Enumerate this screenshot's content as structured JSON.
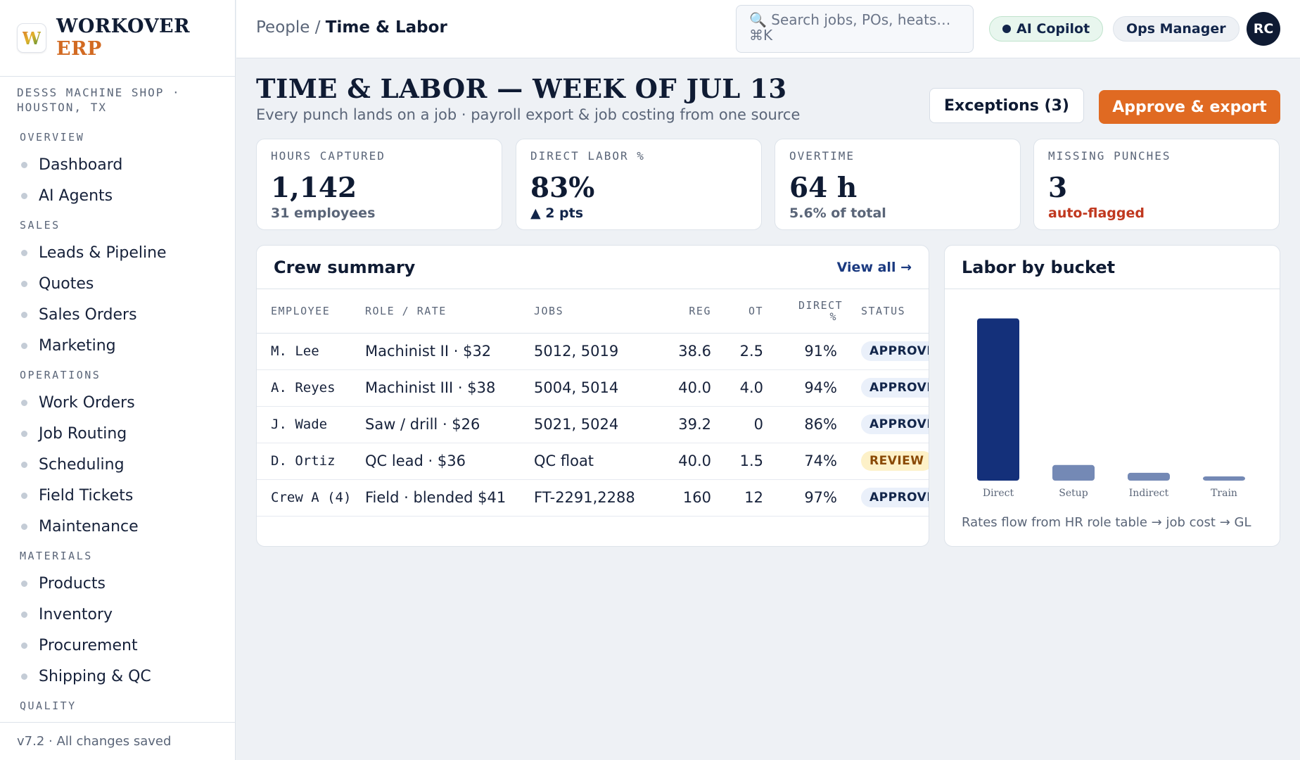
{
  "brand": {
    "logo_letter": "W",
    "name_line1": "WORKOVER",
    "name_line2": "ERP",
    "accent": "#d26a22"
  },
  "shop": "DESSS MACHINE SHOP · HOUSTON, TX",
  "sidebar": {
    "sections": [
      {
        "title": "OVERVIEW",
        "items": [
          "Dashboard",
          "AI Agents"
        ]
      },
      {
        "title": "SALES",
        "items": [
          "Leads & Pipeline",
          "Quotes",
          "Sales Orders",
          "Marketing"
        ]
      },
      {
        "title": "OPERATIONS",
        "items": [
          "Work Orders",
          "Job Routing",
          "Scheduling",
          "Field Tickets",
          "Maintenance"
        ]
      },
      {
        "title": "MATERIALS",
        "items": [
          "Products",
          "Inventory",
          "Procurement",
          "Shipping & QC"
        ]
      },
      {
        "title": "QUALITY",
        "items": []
      }
    ],
    "version": "v7.2 · All changes saved"
  },
  "topbar": {
    "breadcrumb_parent": "People /",
    "breadcrumb_current": "Time & Labor",
    "search_placeholder": "🔍 Search jobs, POs, heats… ⌘K",
    "ai_copilot": "AI Copilot",
    "role": "Ops Manager",
    "avatar": "RC"
  },
  "header": {
    "title": "TIME & LABOR — WEEK OF JUL 13",
    "subtitle": "Every punch lands on a job · payroll export & job costing from one source",
    "exceptions_button": "Exceptions (3)",
    "approve_button": "Approve & export",
    "primary_color": "#e06a22"
  },
  "kpis": [
    {
      "label": "HOURS CAPTURED",
      "value": "1,142",
      "sub": "31 employees"
    },
    {
      "label": "DIRECT LABOR %",
      "value": "83%",
      "sub": "▲ 2 pts"
    },
    {
      "label": "OVERTIME",
      "value": "64 h",
      "sub": "5.6% of total"
    },
    {
      "label": "MISSING PUNCHES",
      "value": "3",
      "sub": "auto-flagged"
    }
  ],
  "crew": {
    "title": "Crew summary",
    "view_all": "View all →",
    "columns": [
      "EMPLOYEE",
      "ROLE / RATE",
      "JOBS",
      "REG",
      "OT",
      "DIRECT %",
      "STATUS"
    ],
    "rows": [
      {
        "employee": "M. Lee",
        "role": "Machinist II · $32",
        "jobs": "5012, 5019",
        "reg": "38.6",
        "ot": "2.5",
        "direct": "91%",
        "status": "APPROVED",
        "status_kind": "approved"
      },
      {
        "employee": "A. Reyes",
        "role": "Machinist III · $38",
        "jobs": "5004, 5014",
        "reg": "40.0",
        "ot": "4.0",
        "direct": "94%",
        "status": "APPROVED",
        "status_kind": "approved"
      },
      {
        "employee": "J. Wade",
        "role": "Saw / drill · $26",
        "jobs": "5021, 5024",
        "reg": "39.2",
        "ot": "0",
        "direct": "86%",
        "status": "APPROVED",
        "status_kind": "approved"
      },
      {
        "employee": "D. Ortiz",
        "role": "QC lead · $36",
        "jobs": "QC float",
        "reg": "40.0",
        "ot": "1.5",
        "direct": "74%",
        "status": "REVIEW",
        "status_kind": "review"
      },
      {
        "employee": "Crew A (4)",
        "role": "Field · blended $41",
        "jobs": "FT-2291,2288",
        "reg": "160",
        "ot": "12",
        "direct": "97%",
        "status": "APPROVED",
        "status_kind": "approved"
      }
    ]
  },
  "labor": {
    "title": "Labor by bucket",
    "note": "Rates flow from HR role table → job cost → GL"
  },
  "chart_data": {
    "type": "bar",
    "categories": [
      "Direct",
      "Setup",
      "Indirect",
      "Train"
    ],
    "values": [
      83,
      8,
      4,
      2
    ],
    "ylim": [
      0,
      85
    ],
    "colors": [
      "#14307a",
      "#7489b5",
      "#7489b5",
      "#7489b5"
    ],
    "grid": false
  }
}
